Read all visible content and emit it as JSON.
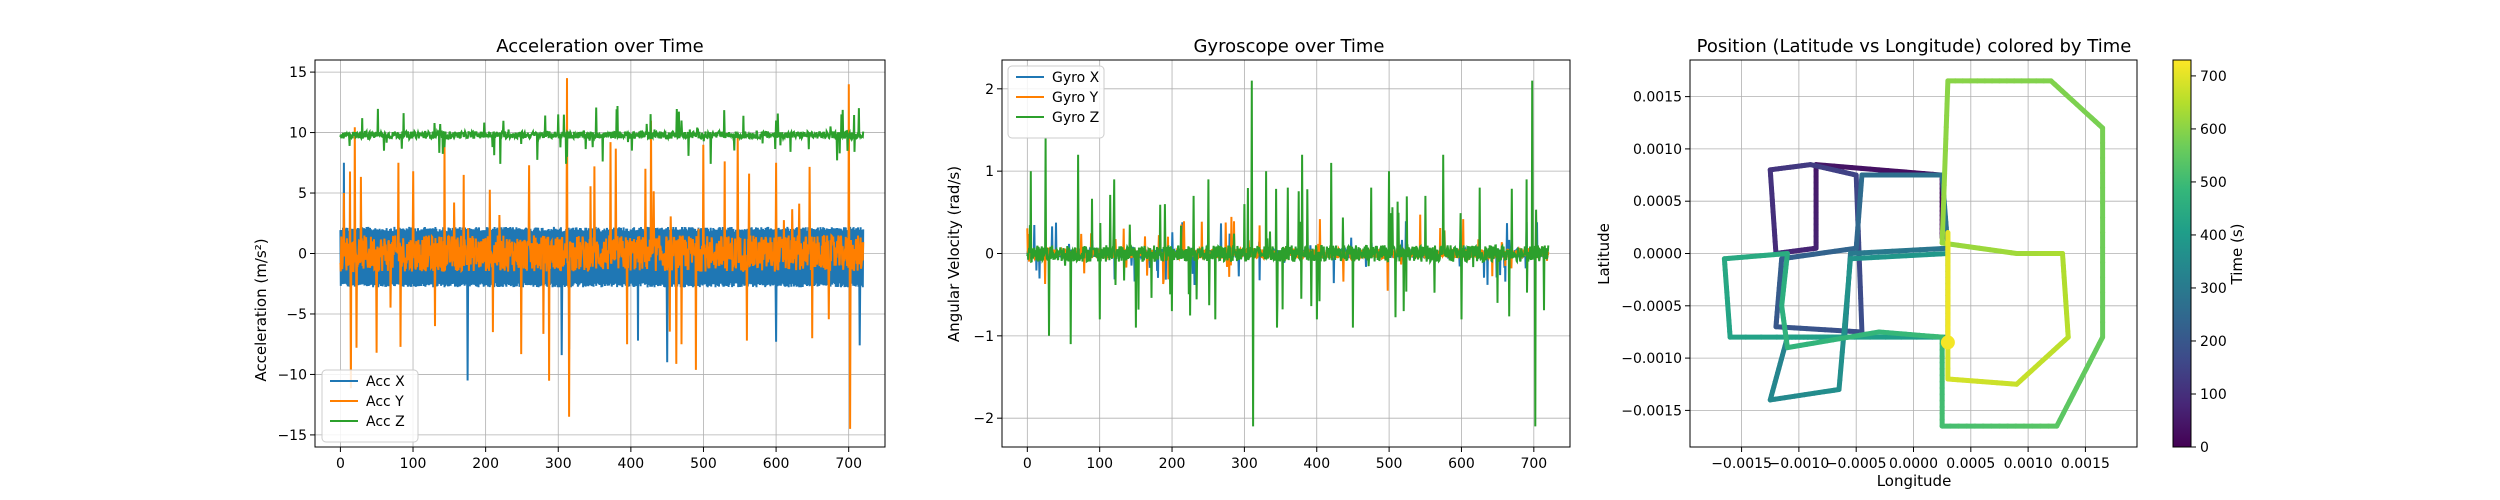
{
  "chart_data": [
    {
      "type": "line",
      "title": "Acceleration over Time",
      "xlabel": "",
      "ylabel": "Acceleration (m/s²)",
      "xlim": [
        -35,
        750
      ],
      "ylim": [
        -16,
        16
      ],
      "xticks": [
        0,
        100,
        200,
        300,
        400,
        500,
        600,
        700
      ],
      "yticks": [
        -15,
        -10,
        -5,
        0,
        5,
        10,
        15
      ],
      "grid": true,
      "legend_position": "lower left",
      "duration": 720,
      "series": [
        {
          "name": "Acc X",
          "color": "#1f77b4",
          "base": 0.0,
          "band": [
            -2.8,
            2.2
          ],
          "spikes": [
            [
              5,
              7.5
            ],
            [
              175,
              -10.5
            ],
            [
              305,
              -8.4
            ],
            [
              315,
              -7.9
            ],
            [
              450,
              -9.0
            ],
            [
              410,
              -7.2
            ],
            [
              600,
              -7.3
            ],
            [
              715,
              -7.6
            ]
          ]
        },
        {
          "name": "Acc Y",
          "color": "#ff7f00",
          "base": 0.0,
          "band": [
            -1.5,
            1.5
          ],
          "spikes": [
            [
              5,
              5.0
            ],
            [
              50,
              -8.2
            ],
            [
              80,
              7.5
            ],
            [
              100,
              6.8
            ],
            [
              130,
              -6.0
            ],
            [
              170,
              6.5
            ],
            [
              210,
              -6.5
            ],
            [
              260,
              7.3
            ],
            [
              312,
              14.5
            ],
            [
              315,
              -13.5
            ],
            [
              350,
              7.2
            ],
            [
              395,
              -7.5
            ],
            [
              420,
              7.0
            ],
            [
              470,
              -7.5
            ],
            [
              500,
              9.0
            ],
            [
              560,
              -7.2
            ],
            [
              600,
              7.5
            ],
            [
              650,
              -7.0
            ],
            [
              700,
              14.0
            ],
            [
              702,
              -14.5
            ]
          ]
        },
        {
          "name": "Acc Z",
          "color": "#2ca02c",
          "base": 9.8,
          "band": [
            9.5,
            10.1
          ],
          "spikes": [
            [
              30,
              11.2
            ],
            [
              60,
              8.5
            ],
            [
              300,
              11.5
            ],
            [
              312,
              8.0
            ],
            [
              470,
              11.0
            ],
            [
              600,
              11.0
            ],
            [
              620,
              8.4
            ],
            [
              690,
              11.5
            ]
          ]
        }
      ]
    },
    {
      "type": "line",
      "title": "Gyroscope over Time",
      "xlabel": "",
      "ylabel": "Angular Velocity (rad/s)",
      "xlim": [
        -35,
        750
      ],
      "ylim": [
        -2.35,
        2.35
      ],
      "xticks": [
        0,
        100,
        200,
        300,
        400,
        500,
        600,
        700
      ],
      "yticks": [
        -2,
        -1,
        0,
        1,
        2
      ],
      "grid": true,
      "legend_position": "upper left",
      "duration": 720,
      "series": [
        {
          "name": "Gyro X",
          "color": "#1f77b4",
          "base": 0.0,
          "band": [
            -0.05,
            0.05
          ],
          "spikes": []
        },
        {
          "name": "Gyro Y",
          "color": "#ff7f00",
          "base": 0.0,
          "band": [
            -0.06,
            0.06
          ],
          "spikes": []
        },
        {
          "name": "Gyro Z",
          "color": "#2ca02c",
          "base": 0.0,
          "band": [
            -0.1,
            0.1
          ],
          "spikes": [
            [
              5,
              1.0
            ],
            [
              25,
              1.4
            ],
            [
              30,
              -1.0
            ],
            [
              60,
              -1.1
            ],
            [
              70,
              1.2
            ],
            [
              100,
              -0.8
            ],
            [
              120,
              0.9
            ],
            [
              150,
              -0.9
            ],
            [
              190,
              0.6
            ],
            [
              200,
              -0.7
            ],
            [
              230,
              0.7
            ],
            [
              250,
              0.9
            ],
            [
              260,
              -0.8
            ],
            [
              300,
              0.6
            ],
            [
              310,
              2.1
            ],
            [
              312,
              -2.1
            ],
            [
              330,
              1.0
            ],
            [
              345,
              -0.9
            ],
            [
              360,
              0.8
            ],
            [
              380,
              1.2
            ],
            [
              400,
              -0.8
            ],
            [
              420,
              1.1
            ],
            [
              450,
              -0.9
            ],
            [
              475,
              0.8
            ],
            [
              500,
              1.0
            ],
            [
              520,
              -0.7
            ],
            [
              550,
              0.7
            ],
            [
              575,
              1.2
            ],
            [
              600,
              -0.8
            ],
            [
              625,
              0.8
            ],
            [
              650,
              -0.6
            ],
            [
              690,
              0.9
            ],
            [
              698,
              2.1
            ],
            [
              702,
              -2.1
            ]
          ]
        }
      ]
    },
    {
      "type": "scatter",
      "title": "Position (Latitude vs Longitude) colored by Time",
      "xlabel": "Longitude",
      "ylabel": "Latitude",
      "xlim": [
        -0.00195,
        0.00195
      ],
      "ylim": [
        -0.00185,
        0.00185
      ],
      "xticks": [
        -0.0015,
        -0.001,
        -0.0005,
        0.0,
        0.0005,
        0.001,
        0.0015
      ],
      "xtick_labels": [
        "−0.0015",
        "−0.0010",
        "−0.0005",
        "0.0000",
        "0.0005",
        "0.0010",
        "0.0015"
      ],
      "yticks": [
        -0.0015,
        -0.001,
        -0.0005,
        0.0,
        0.0005,
        0.001,
        0.0015
      ],
      "ytick_labels": [
        "−0.0015",
        "−0.0010",
        "−0.0005",
        "0.0000",
        "0.0005",
        "0.0010",
        "0.0015"
      ],
      "grid": true,
      "colormap": "viridis",
      "colorbar": {
        "label": "Time (s)",
        "range": [
          0,
          730
        ],
        "ticks": [
          0,
          100,
          200,
          300,
          400,
          500,
          600,
          700
        ]
      },
      "path": [
        {
          "lon": 0.00025,
          "lat": 0.00015,
          "t": 0
        },
        {
          "lon": 0.00025,
          "lat": 0.00075,
          "t": 20
        },
        {
          "lon": -0.00085,
          "lat": 0.00085,
          "t": 45
        },
        {
          "lon": -0.00085,
          "lat": 5e-05,
          "t": 70
        },
        {
          "lon": -0.0012,
          "lat": 0.0,
          "t": 90
        },
        {
          "lon": -0.00125,
          "lat": 0.0008,
          "t": 110
        },
        {
          "lon": -0.0009,
          "lat": 0.00085,
          "t": 130
        },
        {
          "lon": -0.0005,
          "lat": 0.00075,
          "t": 150
        },
        {
          "lon": -0.00045,
          "lat": -0.00075,
          "t": 175
        },
        {
          "lon": -0.0012,
          "lat": -0.0007,
          "t": 200
        },
        {
          "lon": -0.00115,
          "lat": -5e-05,
          "t": 220
        },
        {
          "lon": -0.0005,
          "lat": 5e-05,
          "t": 240
        },
        {
          "lon": -0.00045,
          "lat": 0.00075,
          "t": 260
        },
        {
          "lon": 0.00025,
          "lat": 0.00075,
          "t": 275
        },
        {
          "lon": 0.0003,
          "lat": 5e-05,
          "t": 285
        },
        {
          "lon": -0.00055,
          "lat": 0.0,
          "t": 300
        },
        {
          "lon": -0.0006,
          "lat": -0.0008,
          "t": 310
        },
        {
          "lon": -0.0011,
          "lat": -0.0008,
          "t": 320
        },
        {
          "lon": -0.00125,
          "lat": -0.0014,
          "t": 340
        },
        {
          "lon": -0.00065,
          "lat": -0.0013,
          "t": 360
        },
        {
          "lon": -0.00055,
          "lat": -5e-05,
          "t": 375
        },
        {
          "lon": 0.0003,
          "lat": 0.0,
          "t": 390
        },
        {
          "lon": 0.0003,
          "lat": -0.0008,
          "t": 400
        },
        {
          "lon": -0.0016,
          "lat": -0.0008,
          "t": 420
        },
        {
          "lon": -0.00165,
          "lat": -5e-05,
          "t": 440
        },
        {
          "lon": -0.0011,
          "lat": 0.0,
          "t": 450
        },
        {
          "lon": -0.00115,
          "lat": -0.0005,
          "t": 460
        },
        {
          "lon": -0.0011,
          "lat": -0.0009,
          "t": 475
        },
        {
          "lon": -0.0003,
          "lat": -0.00075,
          "t": 485
        },
        {
          "lon": 0.00025,
          "lat": -0.0008,
          "t": 495
        },
        {
          "lon": 0.00025,
          "lat": -0.00165,
          "t": 510
        },
        {
          "lon": 0.00125,
          "lat": -0.00165,
          "t": 540
        },
        {
          "lon": 0.00165,
          "lat": -0.0008,
          "t": 560
        },
        {
          "lon": 0.00165,
          "lat": 0.0012,
          "t": 580
        },
        {
          "lon": 0.0012,
          "lat": 0.00165,
          "t": 590
        },
        {
          "lon": 0.0003,
          "lat": 0.00165,
          "t": 600
        },
        {
          "lon": 0.00025,
          "lat": 0.0001,
          "t": 615
        },
        {
          "lon": 0.0009,
          "lat": 0.0,
          "t": 625
        },
        {
          "lon": 0.0013,
          "lat": 0.0,
          "t": 640
        },
        {
          "lon": 0.00135,
          "lat": -0.0008,
          "t": 655
        },
        {
          "lon": 0.0009,
          "lat": -0.00125,
          "t": 670
        },
        {
          "lon": 0.0003,
          "lat": -0.0012,
          "t": 685
        },
        {
          "lon": 0.0003,
          "lat": 0.0002,
          "t": 700
        },
        {
          "lon": 0.0003,
          "lat": -0.00085,
          "t": 720
        }
      ]
    }
  ]
}
